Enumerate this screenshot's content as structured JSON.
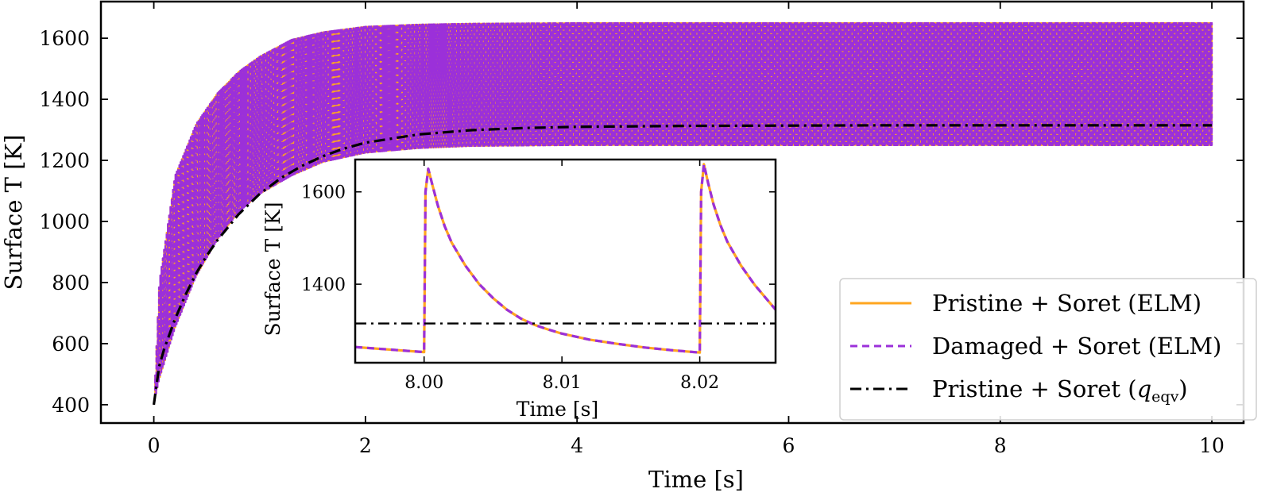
{
  "chart_data": [
    {
      "type": "line",
      "role": "main",
      "xlabel": "Time [s]",
      "ylabel": "Surface T [K]",
      "xlim": [
        -0.5,
        10.3
      ],
      "ylim": [
        340,
        1720
      ],
      "xticks": [
        0,
        2,
        4,
        6,
        8,
        10
      ],
      "yticks": [
        400,
        600,
        800,
        1000,
        1200,
        1400,
        1600
      ],
      "xtick_labels": [
        "0",
        "2",
        "4",
        "6",
        "8",
        "10"
      ],
      "ytick_labels": [
        "400",
        "600",
        "800",
        "1000",
        "1200",
        "1400",
        "1600"
      ],
      "grid": false,
      "legend_position": "lower-right",
      "series": [
        {
          "name": "Pristine + Soret (ELM)",
          "color": "#ffa51f",
          "style": "solid",
          "envelope_upper": {
            "t": [
              0,
              0.05,
              0.2,
              0.4,
              0.6,
              0.8,
              1.0,
              1.3,
              1.6,
              2.0,
              2.5,
              3.0,
              4.0,
              5.0,
              6.0,
              8.0,
              10.0
            ],
            "T": [
              400,
              800,
              1150,
              1320,
              1420,
              1490,
              1540,
              1595,
              1620,
              1638,
              1645,
              1648,
              1650,
              1650,
              1650,
              1650,
              1650
            ]
          },
          "envelope_lower": {
            "t": [
              0,
              0.05,
              0.2,
              0.4,
              0.6,
              0.8,
              1.0,
              1.3,
              1.6,
              2.0,
              2.5,
              3.0,
              4.0,
              5.0,
              6.0,
              8.0,
              10.0
            ],
            "T": [
              400,
              480,
              650,
              820,
              940,
              1030,
              1090,
              1150,
              1195,
              1225,
              1240,
              1247,
              1250,
              1250,
              1250,
              1250,
              1250
            ]
          }
        },
        {
          "name": "Damaged + Soret (ELM)",
          "color": "#9b30d9",
          "style": "dashed",
          "envelope_upper": {
            "t": [
              0,
              0.05,
              0.2,
              0.4,
              0.6,
              0.8,
              1.0,
              1.3,
              1.6,
              2.0,
              2.5,
              3.0,
              4.0,
              5.0,
              6.0,
              8.0,
              10.0
            ],
            "T": [
              400,
              800,
              1150,
              1320,
              1420,
              1490,
              1540,
              1595,
              1620,
              1638,
              1645,
              1648,
              1650,
              1650,
              1650,
              1650,
              1650
            ]
          },
          "envelope_lower": {
            "t": [
              0,
              0.05,
              0.2,
              0.4,
              0.6,
              0.8,
              1.0,
              1.3,
              1.6,
              2.0,
              2.5,
              3.0,
              4.0,
              5.0,
              6.0,
              8.0,
              10.0
            ],
            "T": [
              400,
              480,
              650,
              820,
              940,
              1030,
              1090,
              1150,
              1195,
              1225,
              1240,
              1247,
              1250,
              1250,
              1250,
              1250,
              1250
            ]
          }
        },
        {
          "name": "Pristine + Soret (",
          "name_symbol": "q",
          "name_subscript": "eqv",
          "name_suffix": ")",
          "color": "#000000",
          "style": "dashdot",
          "x": [
            0,
            0.05,
            0.1,
            0.2,
            0.3,
            0.4,
            0.5,
            0.6,
            0.8,
            1.0,
            1.2,
            1.4,
            1.6,
            1.8,
            2.0,
            2.5,
            3.0,
            3.5,
            4.0,
            5.0,
            6.0,
            7.0,
            8.0,
            9.0,
            10.0
          ],
          "y": [
            400,
            525,
            585,
            680,
            760,
            830,
            888,
            938,
            1023,
            1090,
            1142,
            1182,
            1214,
            1239,
            1258,
            1285,
            1299,
            1306,
            1310,
            1313,
            1314,
            1315,
            1315,
            1315,
            1315
          ]
        }
      ]
    },
    {
      "type": "line",
      "role": "inset",
      "xlabel": "Time [s]",
      "ylabel": "Surface T [K]",
      "xlim": [
        7.995,
        8.0255
      ],
      "ylim": [
        1230,
        1670
      ],
      "xticks": [
        8.0,
        8.01,
        8.02
      ],
      "yticks": [
        1400,
        1600
      ],
      "xtick_labels": [
        "8.00",
        "8.01",
        "8.02"
      ],
      "ytick_labels": [
        "1400",
        "1600"
      ],
      "grid": false,
      "series": [
        {
          "name": "Pristine + Soret (ELM)",
          "color": "#ffa51f",
          "style": "solid",
          "x": [
            7.995,
            8.0,
            8.0001,
            8.0003,
            8.0006,
            8.001,
            8.0015,
            8.002,
            8.003,
            8.004,
            8.005,
            8.006,
            8.007,
            8.008,
            8.009,
            8.01,
            8.012,
            8.014,
            8.016,
            8.018,
            8.02,
            8.0201,
            8.0203,
            8.0206,
            8.021,
            8.0215,
            8.022,
            8.023,
            8.024,
            8.0255
          ],
          "y": [
            1264,
            1253,
            1600,
            1650,
            1615,
            1570,
            1525,
            1490,
            1440,
            1400,
            1370,
            1345,
            1326,
            1312,
            1302,
            1293,
            1280,
            1271,
            1263,
            1257,
            1252,
            1600,
            1660,
            1620,
            1573,
            1528,
            1492,
            1440,
            1398,
            1345
          ]
        },
        {
          "name": "Damaged + Soret (ELM)",
          "color": "#9b30d9",
          "style": "dashed",
          "x": [
            7.995,
            8.0,
            8.0001,
            8.0003,
            8.0006,
            8.001,
            8.0015,
            8.002,
            8.003,
            8.004,
            8.005,
            8.006,
            8.007,
            8.008,
            8.009,
            8.01,
            8.012,
            8.014,
            8.016,
            8.018,
            8.02,
            8.0201,
            8.0203,
            8.0206,
            8.021,
            8.0215,
            8.022,
            8.023,
            8.024,
            8.0255
          ],
          "y": [
            1264,
            1253,
            1600,
            1650,
            1615,
            1570,
            1525,
            1490,
            1440,
            1400,
            1370,
            1345,
            1326,
            1312,
            1302,
            1293,
            1280,
            1271,
            1263,
            1257,
            1252,
            1600,
            1660,
            1620,
            1573,
            1528,
            1492,
            1440,
            1398,
            1345
          ]
        },
        {
          "name": "Pristine + Soret (qeqv)",
          "color": "#000000",
          "style": "dashdot",
          "x": [
            7.995,
            8.0255
          ],
          "y": [
            1315,
            1315
          ]
        }
      ]
    }
  ]
}
